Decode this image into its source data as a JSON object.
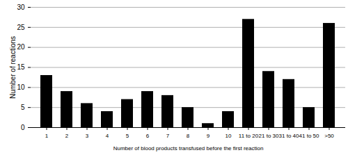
{
  "chart_data": {
    "type": "bar",
    "x_label": "Number of blood products transfused before the first reaction",
    "y_label": "Number of reactions",
    "categories": [
      "1",
      "2",
      "3",
      "4",
      "5",
      "6",
      "7",
      "8",
      "9",
      "10",
      "11 to 20",
      "21 to 30",
      "31 to 40",
      "41 to 50",
      ">50"
    ],
    "values": [
      13,
      9,
      6,
      4,
      7,
      9,
      8,
      5,
      1,
      4,
      27,
      14,
      12,
      5,
      26
    ],
    "color": "#000000",
    "ylim": [
      0,
      30
    ],
    "yticks": [
      0,
      5,
      10,
      15,
      20,
      25,
      30
    ],
    "grid": true
  }
}
